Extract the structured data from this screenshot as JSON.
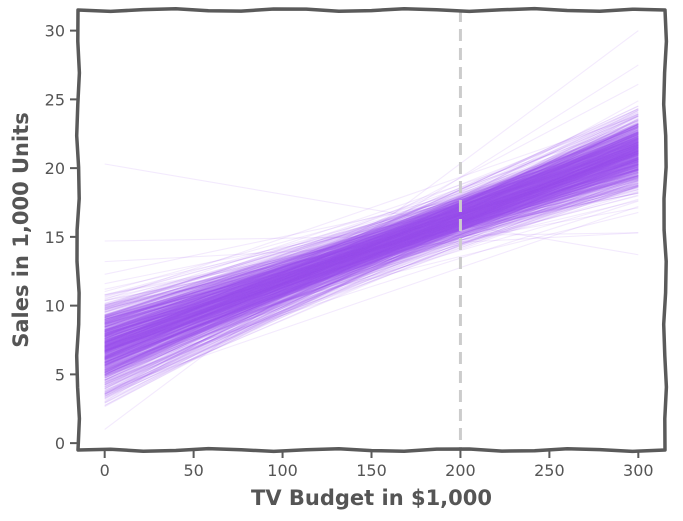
{
  "chart_data": {
    "type": "line",
    "title": "",
    "xlabel": "TV Budget in $1,000",
    "ylabel": "Sales in 1,000 Units",
    "xlim": [
      -15,
      315
    ],
    "ylim": [
      -0.5,
      31.5
    ],
    "xticks": [
      0,
      50,
      100,
      150,
      200,
      250,
      300
    ],
    "yticks": [
      0,
      5,
      10,
      15,
      20,
      25,
      30
    ],
    "grid": false,
    "legend": "none",
    "sketch_style": true,
    "line_color": "#9d52f0",
    "line_opacity": 0.12,
    "reference_line": {
      "x": 200,
      "style": "dashed",
      "color": "#cccccc"
    },
    "series_summary": {
      "description": "ensemble of regression lines (posterior samples)",
      "x_range": [
        0,
        300
      ],
      "intercept_mean": 7.0,
      "intercept_sd": 1.6,
      "slope_mean": 0.0475,
      "slope_sd": 0.0085,
      "example_lines": [
        {
          "x": [
            0,
            300
          ],
          "y": [
            7.0,
            21.3
          ]
        },
        {
          "x": [
            0,
            300
          ],
          "y": [
            20.3,
            13.7
          ]
        },
        {
          "x": [
            0,
            300
          ],
          "y": [
            14.7,
            15.3
          ]
        },
        {
          "x": [
            0,
            300
          ],
          "y": [
            1.0,
            30.0
          ]
        },
        {
          "x": [
            0,
            300
          ],
          "y": [
            13.2,
            15.3
          ]
        },
        {
          "x": [
            0,
            300
          ],
          "y": [
            3.0,
            27.5
          ]
        }
      ]
    },
    "colors": {
      "axis": "#5a5a5a",
      "ticks": "#555555",
      "background": "#ffffff"
    }
  }
}
